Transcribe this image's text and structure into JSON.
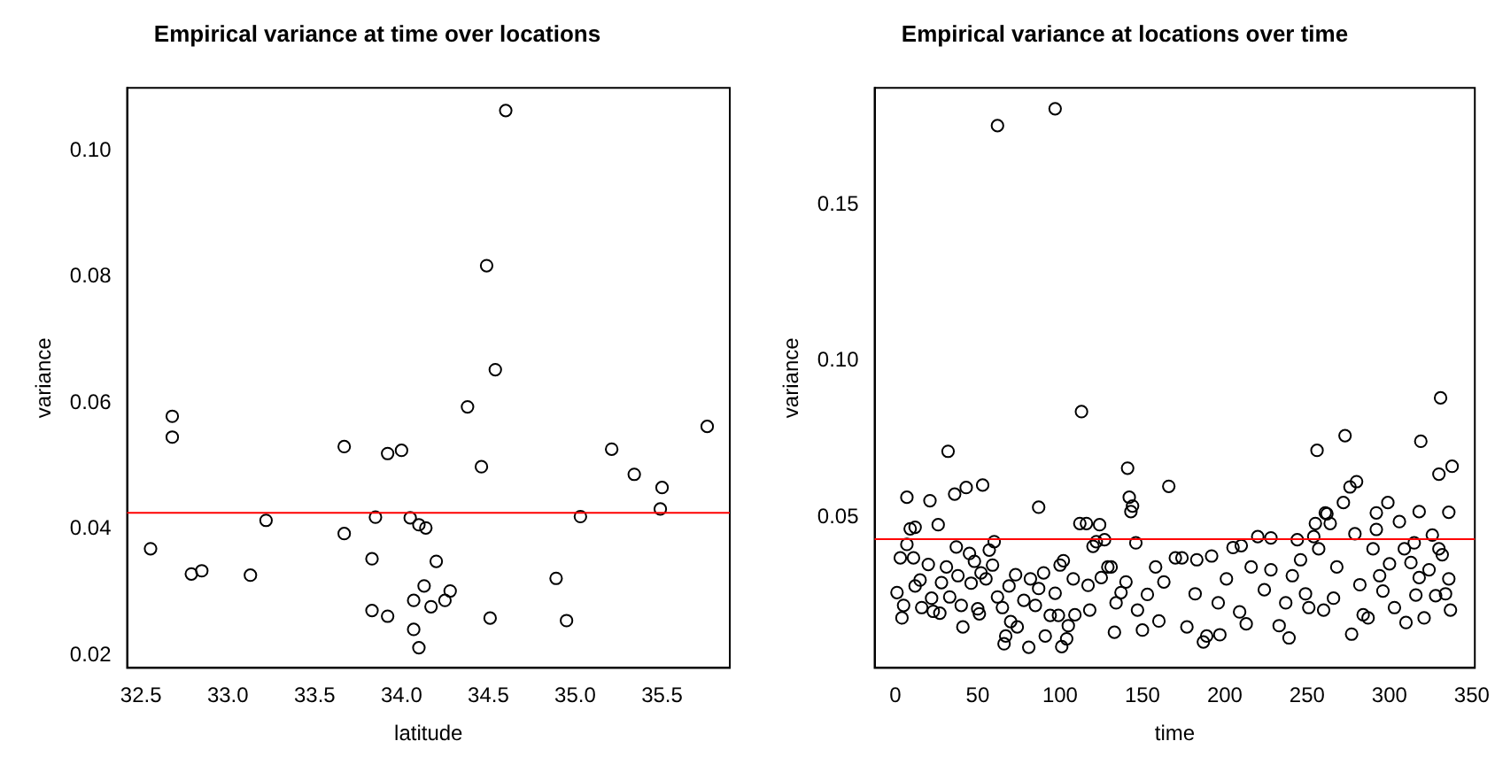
{
  "chart_data": [
    {
      "type": "scatter",
      "title": "Empirical variance at time over locations",
      "xlabel": "latitude",
      "ylabel": "variance",
      "color": "#000000",
      "marker": "circle",
      "x": [
        32.555,
        32.68,
        32.68,
        32.79,
        32.85,
        33.13,
        33.22,
        33.67,
        33.67,
        33.83,
        33.83,
        33.85,
        33.92,
        33.92,
        34.0,
        34.05,
        34.07,
        34.07,
        34.1,
        34.1,
        34.13,
        34.14,
        34.17,
        34.2,
        34.25,
        34.28,
        34.38,
        34.46,
        34.49,
        34.51,
        34.54,
        34.6,
        34.89,
        34.95,
        35.03,
        35.21,
        35.34,
        35.5,
        35.49,
        35.76
      ],
      "values": [
        0.0369,
        0.0579,
        0.0546,
        0.0329,
        0.0334,
        0.0327,
        0.0414,
        0.0531,
        0.0393,
        0.0353,
        0.0271,
        0.0419,
        0.052,
        0.0262,
        0.0525,
        0.0418,
        0.0287,
        0.0241,
        0.0407,
        0.0212,
        0.031,
        0.0402,
        0.0277,
        0.0349,
        0.0287,
        0.0302,
        0.0594,
        0.0499,
        0.0818,
        0.0259,
        0.0653,
        0.1064,
        0.0322,
        0.0255,
        0.042,
        0.0527,
        0.0487,
        0.0466,
        0.0432,
        0.0563
      ],
      "xlim": [
        32.42,
        35.89
      ],
      "ylim": [
        0.018,
        0.11
      ],
      "xticks": [
        32.5,
        {
          "value": 33,
          "label": "33.0"
        },
        33.5,
        {
          "value": 34,
          "label": "34.0"
        },
        34.5,
        {
          "value": 35,
          "label": "35.0"
        },
        35.5
      ],
      "yticks": [
        0.02,
        0.04,
        0.06,
        0.08,
        {
          "value": 0.1,
          "label": "0.10"
        }
      ],
      "ref_lines": [
        {
          "axis": "y",
          "value": 0.0426,
          "color": "#ff0000"
        }
      ]
    },
    {
      "type": "scatter",
      "title": "Empirical variance at locations over time",
      "xlabel": "time",
      "ylabel": "variance",
      "color": "#000000",
      "marker": "circle",
      "x": [
        62,
        97,
        113,
        32,
        141,
        7,
        21,
        26,
        43,
        36,
        53,
        87,
        142,
        143,
        144,
        166,
        256,
        273,
        319,
        331,
        330,
        338,
        276,
        280,
        272,
        299,
        318,
        336,
        292,
        261,
        1,
        4,
        5,
        3,
        7,
        9,
        12,
        11,
        12,
        15,
        16,
        20,
        22,
        23,
        27,
        28,
        31,
        33,
        37,
        38,
        40,
        41,
        45,
        46,
        48,
        50,
        51,
        52,
        55,
        57,
        59,
        60,
        62,
        65,
        66,
        67,
        69,
        73,
        70,
        74,
        78,
        81,
        82,
        85,
        87,
        90,
        91,
        94,
        97,
        99,
        100,
        101,
        102,
        104,
        105,
        108,
        109,
        112,
        116,
        117,
        118,
        120,
        122,
        124,
        125,
        127,
        129,
        131,
        133,
        134,
        137,
        140,
        146,
        147,
        150,
        153,
        158,
        160,
        163,
        170,
        174,
        177,
        182,
        183,
        187,
        189,
        192,
        196,
        197,
        201,
        205,
        209,
        210,
        213,
        216,
        220,
        224,
        228,
        228,
        233,
        237,
        239,
        241,
        244,
        246,
        249,
        251,
        254,
        255,
        257,
        260,
        262,
        264,
        266,
        268,
        277,
        279,
        282,
        284,
        287,
        290,
        292,
        294,
        296,
        300,
        303,
        306,
        309,
        310,
        313,
        315,
        316,
        318,
        321,
        324,
        326,
        328,
        330,
        332,
        334,
        336,
        337
      ],
      "values": [
        0.1752,
        0.1806,
        0.0837,
        0.071,
        0.0656,
        0.0563,
        0.0552,
        0.0475,
        0.0594,
        0.0573,
        0.0602,
        0.0531,
        0.0563,
        0.0517,
        0.0535,
        0.0598,
        0.0713,
        0.076,
        0.0742,
        0.0881,
        0.0637,
        0.0662,
        0.0596,
        0.0613,
        0.0546,
        0.0546,
        0.0517,
        0.0515,
        0.0513,
        0.0513,
        0.0258,
        0.0177,
        0.0217,
        0.0369,
        0.0412,
        0.0462,
        0.0467,
        0.0369,
        0.0279,
        0.0298,
        0.021,
        0.0348,
        0.024,
        0.0198,
        0.0192,
        0.029,
        0.034,
        0.0244,
        0.0404,
        0.0312,
        0.0217,
        0.0148,
        0.0383,
        0.0288,
        0.0358,
        0.0206,
        0.019,
        0.0321,
        0.0302,
        0.0394,
        0.0346,
        0.0421,
        0.0244,
        0.021,
        0.0094,
        0.0119,
        0.0279,
        0.0315,
        0.0165,
        0.0148,
        0.0233,
        0.0083,
        0.0302,
        0.0217,
        0.0271,
        0.0321,
        0.0119,
        0.0185,
        0.0256,
        0.0185,
        0.0346,
        0.0085,
        0.036,
        0.011,
        0.0152,
        0.0302,
        0.0187,
        0.0479,
        0.0479,
        0.0281,
        0.0202,
        0.0406,
        0.0421,
        0.0475,
        0.0306,
        0.0427,
        0.034,
        0.034,
        0.0131,
        0.0225,
        0.0258,
        0.0292,
        0.0417,
        0.0202,
        0.0138,
        0.0252,
        0.034,
        0.0167,
        0.0292,
        0.0369,
        0.0369,
        0.0148,
        0.0254,
        0.0363,
        0.01,
        0.0119,
        0.0375,
        0.0225,
        0.0123,
        0.0302,
        0.0402,
        0.0196,
        0.0408,
        0.0158,
        0.034,
        0.0437,
        0.0267,
        0.0433,
        0.0331,
        0.0152,
        0.0225,
        0.0113,
        0.0312,
        0.0427,
        0.0363,
        0.0254,
        0.021,
        0.0437,
        0.0479,
        0.0398,
        0.0202,
        0.051,
        0.0479,
        0.024,
        0.034,
        0.0125,
        0.0446,
        0.0283,
        0.0187,
        0.0177,
        0.0398,
        0.046,
        0.0312,
        0.0263,
        0.035,
        0.021,
        0.0485,
        0.0398,
        0.0162,
        0.0354,
        0.0417,
        0.025,
        0.0306,
        0.0177,
        0.0331,
        0.0442,
        0.0248,
        0.0398,
        0.0379,
        0.0254,
        0.0302,
        0.0202
      ],
      "xlim": [
        -12.6,
        351.8
      ],
      "ylim": [
        0.0017,
        0.1873
      ],
      "xticks": [
        0,
        50,
        100,
        150,
        200,
        250,
        300,
        350
      ],
      "yticks": [
        0.05,
        {
          "value": 0.1,
          "label": "0.10"
        },
        0.15
      ],
      "ref_lines": [
        {
          "axis": "y",
          "value": 0.0429,
          "color": "#ff0000"
        }
      ]
    }
  ]
}
